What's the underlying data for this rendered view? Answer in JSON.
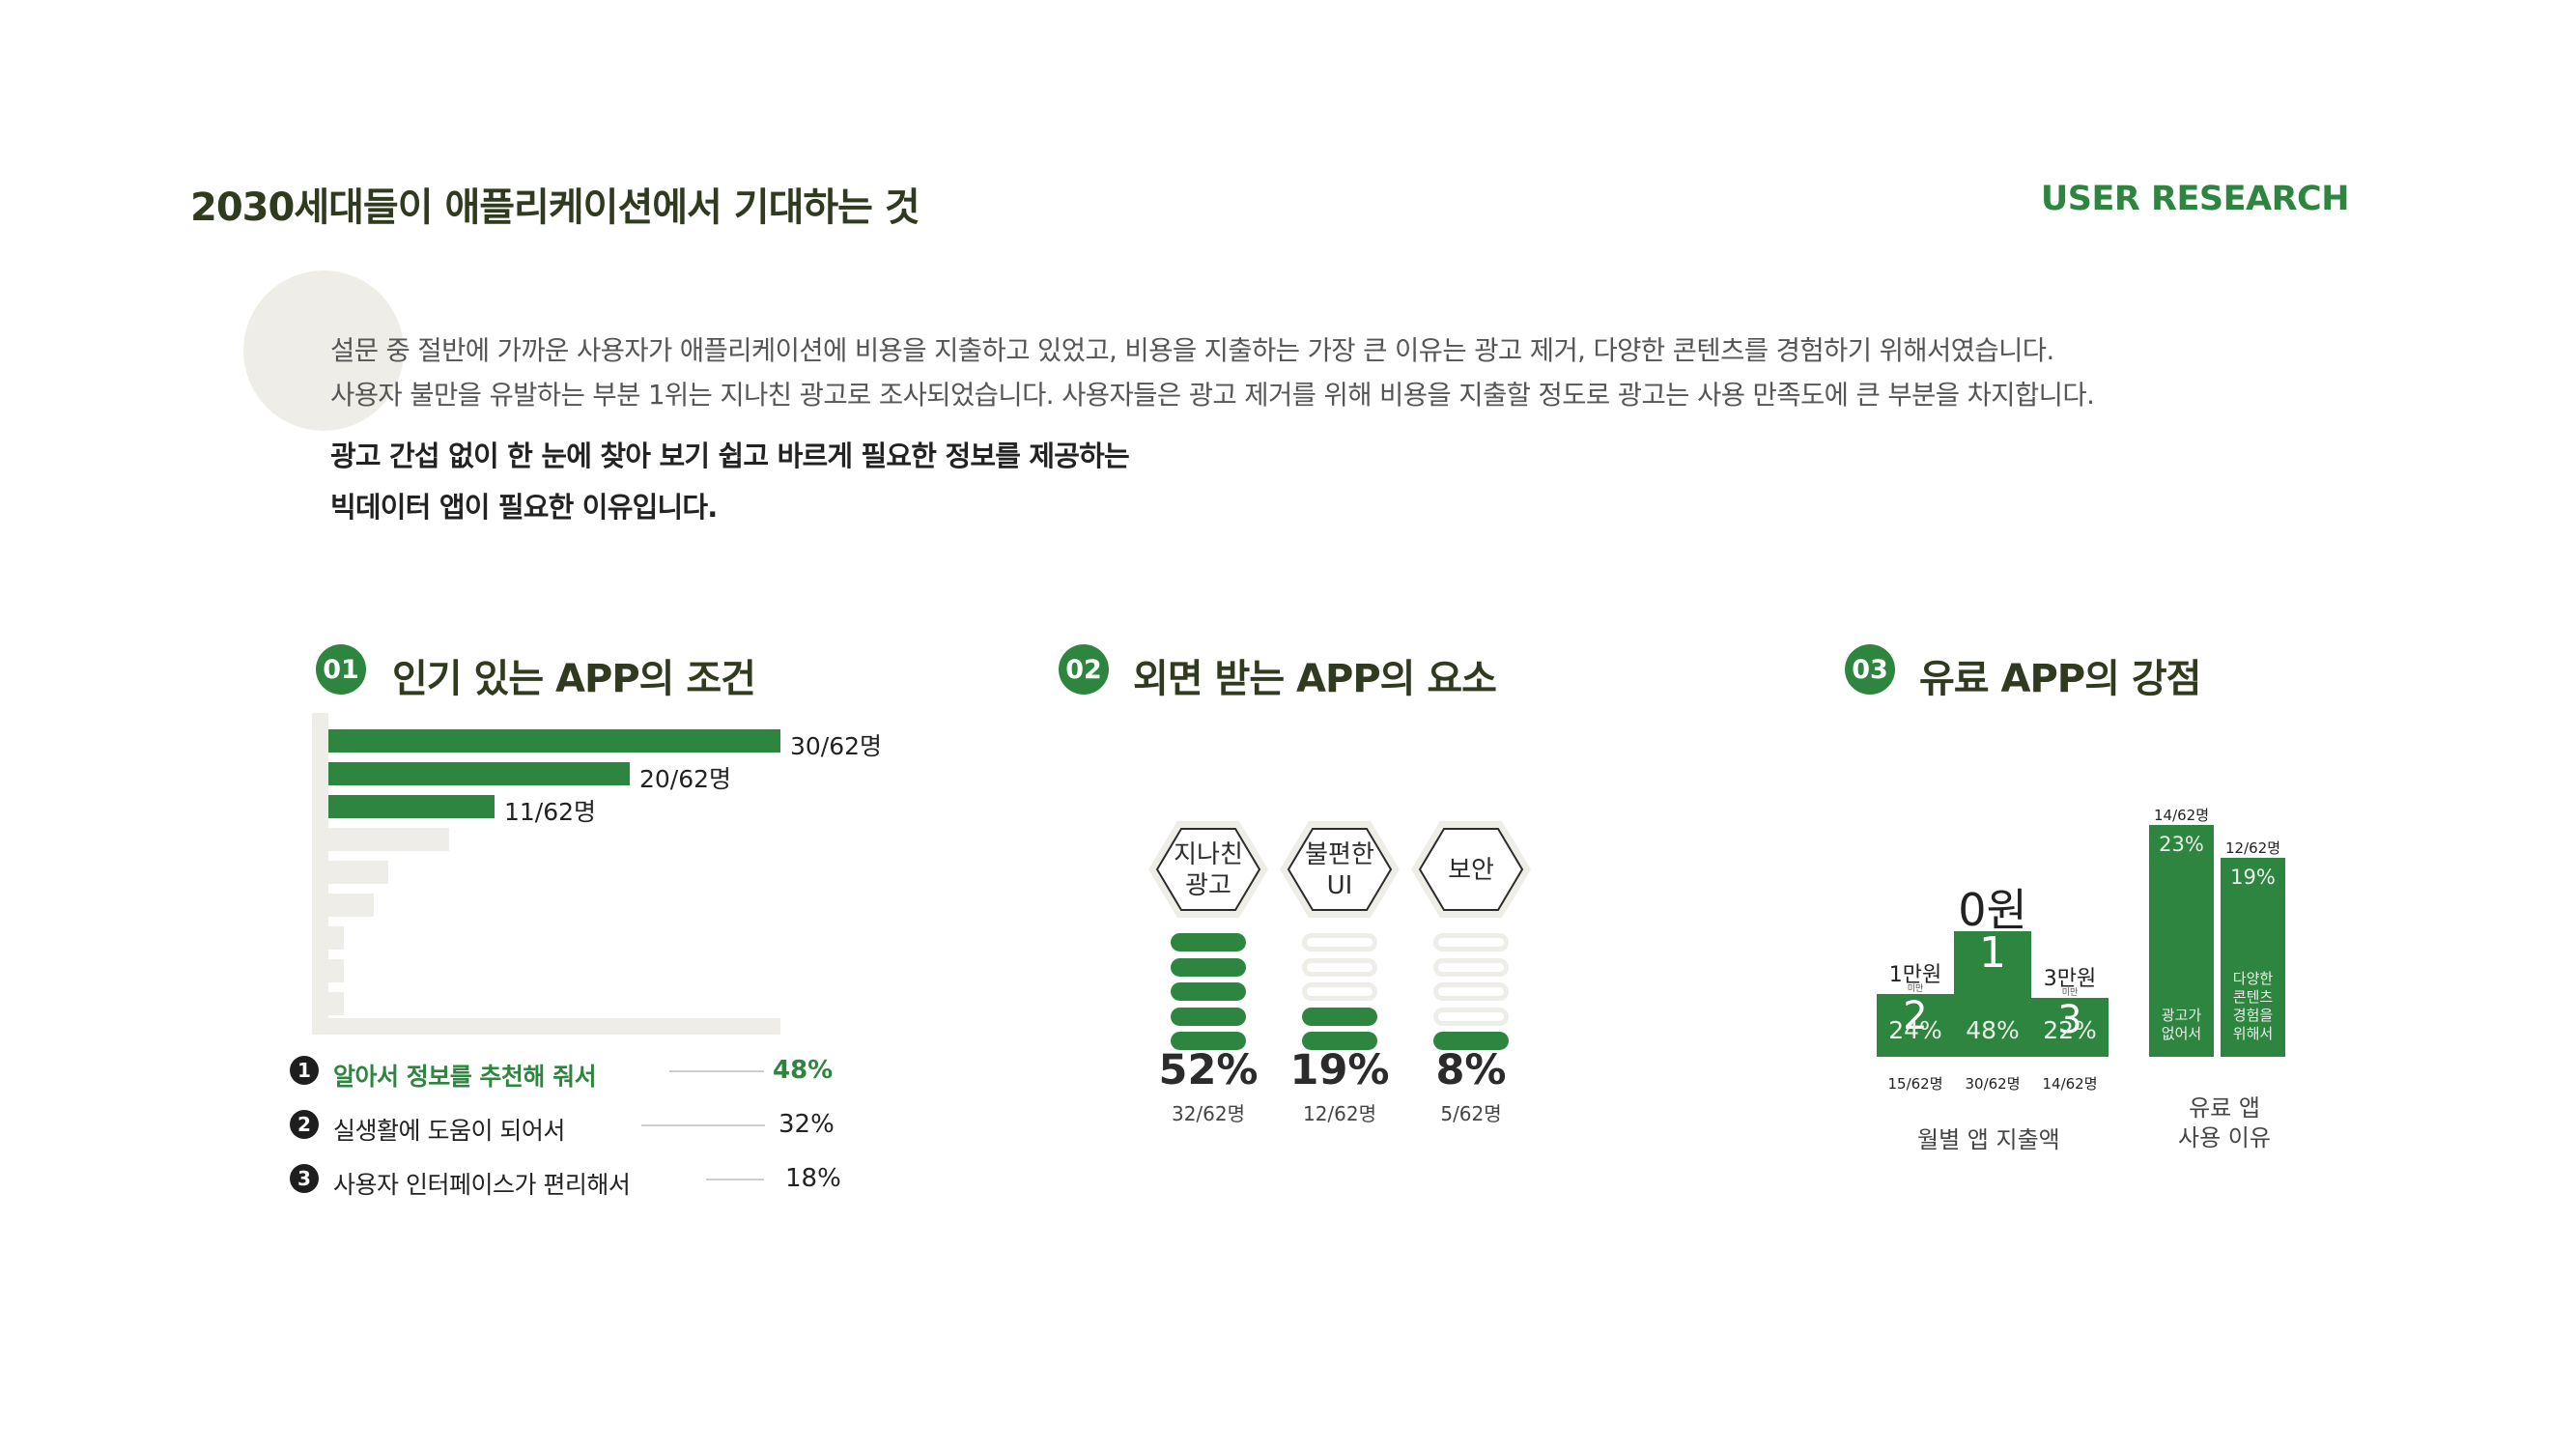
{
  "header": {
    "title": "2030세대들이 애플리케이션에서 기대하는 것",
    "tag": "USER RESEARCH"
  },
  "intro": {
    "line1": "설문 중 절반에 가까운 사용자가 애플리케이션에 비용을 지출하고 있었고, 비용을 지출하는 가장 큰 이유는 광고 제거, 다양한 콘텐츠를 경험하기 위해서였습니다.",
    "line2": "사용자 불만을 유발하는 부분 1위는 지나친 광고로 조사되었습니다. 사용자들은 광고 제거를 위해 비용을 지출할 정도로 광고는 사용 만족도에 큰 부분을 차지합니다.",
    "emph1": "광고 간섭 없이 한 눈에 찾아 보기 쉽고 바르게 필요한 정보를 제공하는",
    "emph2": "빅데이터 앱이 필요한 이유입니다."
  },
  "colors": {
    "accent": "#2e8540",
    "light": "#efede7",
    "title": "#2f3a1e"
  },
  "section1": {
    "num": "01",
    "title": "인기 있는 APP의 조건",
    "bars": [
      {
        "value": 30,
        "total": 62,
        "label": "30/62명",
        "highlight": true
      },
      {
        "value": 20,
        "total": 62,
        "label": "20/62명",
        "highlight": true
      },
      {
        "value": 11,
        "total": 62,
        "label": "11/62명",
        "highlight": true
      },
      {
        "value": 8,
        "total": 62,
        "label": "",
        "highlight": false
      },
      {
        "value": 4,
        "total": 62,
        "label": "",
        "highlight": false
      },
      {
        "value": 3,
        "total": 62,
        "label": "",
        "highlight": false
      },
      {
        "value": 1,
        "total": 62,
        "label": "",
        "highlight": false
      },
      {
        "value": 1,
        "total": 62,
        "label": "",
        "highlight": false
      },
      {
        "value": 1,
        "total": 62,
        "label": "",
        "highlight": false
      }
    ],
    "ranks": [
      {
        "num": "1",
        "text": "알아서 정보를 추천해 줘서",
        "pct": "48%",
        "highlight": true
      },
      {
        "num": "2",
        "text": "실생활에 도움이 되어서",
        "pct": "32%",
        "highlight": false
      },
      {
        "num": "3",
        "text": "사용자 인터페이스가 편리해서",
        "pct": "18%",
        "highlight": false
      }
    ]
  },
  "section2": {
    "num": "02",
    "title": "외면 받는 APP의 요소",
    "items": [
      {
        "line1": "지나친",
        "line2": "광고",
        "pct": "52%",
        "count": "32/62명",
        "filled": 5
      },
      {
        "line1": "불편한",
        "line2": "UI",
        "pct": "19%",
        "count": "12/62명",
        "filled": 2
      },
      {
        "line1": "보안",
        "line2": "",
        "pct": "8%",
        "count": "5/62명",
        "filled": 1
      }
    ]
  },
  "section3": {
    "num": "03",
    "title": "유료 APP의 강점",
    "spending": {
      "caption": "월별 앱 지출액",
      "cols": [
        {
          "rank": "2",
          "amount": "1만원",
          "sub": "미만",
          "pct": "24%",
          "count": "15/62명",
          "value": 15
        },
        {
          "rank": "1",
          "amount": "0원",
          "sub": "",
          "pct": "48%",
          "count": "30/62명",
          "value": 30
        },
        {
          "rank": "3",
          "amount": "3만원",
          "sub": "미만",
          "pct": "22%",
          "count": "14/62명",
          "value": 14
        }
      ]
    },
    "reasons": {
      "caption1": "유료 앱",
      "caption2": "사용 이유",
      "cols": [
        {
          "count": "14/62명",
          "pct": "23%",
          "label": [
            "광고가",
            "없어서"
          ],
          "value": 14
        },
        {
          "count": "12/62명",
          "pct": "19%",
          "label": [
            "다양한",
            "콘텐츠",
            "경험을",
            "위해서"
          ],
          "value": 12
        }
      ]
    }
  }
}
